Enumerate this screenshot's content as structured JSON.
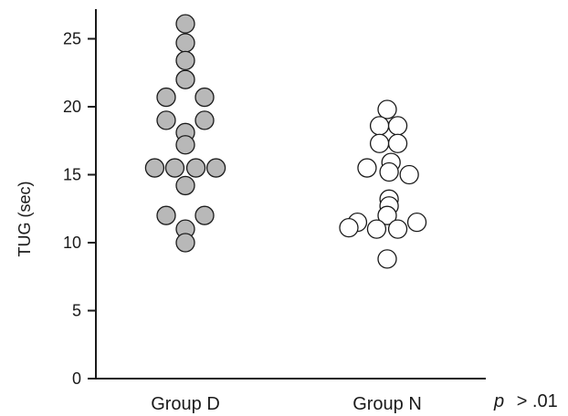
{
  "chart_data": {
    "type": "scatter",
    "ylabel": "TUG (sec)",
    "ylim": [
      0,
      27
    ],
    "yticks": [
      0,
      5,
      10,
      15,
      20,
      25
    ],
    "categories": [
      "Group D",
      "Group N"
    ],
    "annotation": {
      "p": "p",
      "rest": "> .01"
    },
    "series": [
      {
        "category": "Group D",
        "fill": "#b8b8b8",
        "points": [
          {
            "y": 26.1,
            "offset": 0
          },
          {
            "y": 24.7,
            "offset": 0
          },
          {
            "y": 23.4,
            "offset": 0
          },
          {
            "y": 22.0,
            "offset": 0
          },
          {
            "y": 20.7,
            "offset": -1
          },
          {
            "y": 20.7,
            "offset": 1
          },
          {
            "y": 19.0,
            "offset": -1
          },
          {
            "y": 19.0,
            "offset": 1
          },
          {
            "y": 18.1,
            "offset": 0
          },
          {
            "y": 17.2,
            "offset": 0
          },
          {
            "y": 15.5,
            "offset": -1.6
          },
          {
            "y": 15.5,
            "offset": -0.55
          },
          {
            "y": 15.5,
            "offset": 0.55
          },
          {
            "y": 15.5,
            "offset": 1.6
          },
          {
            "y": 14.2,
            "offset": 0
          },
          {
            "y": 12.0,
            "offset": -1
          },
          {
            "y": 12.0,
            "offset": 1
          },
          {
            "y": 11.0,
            "offset": 0
          },
          {
            "y": 10.0,
            "offset": 0
          }
        ]
      },
      {
        "category": "Group N",
        "fill": "#ffffff",
        "points": [
          {
            "y": 19.8,
            "offset": 0
          },
          {
            "y": 18.6,
            "offset": -0.4
          },
          {
            "y": 18.6,
            "offset": 0.55
          },
          {
            "y": 17.3,
            "offset": -0.4
          },
          {
            "y": 17.3,
            "offset": 0.55
          },
          {
            "y": 15.9,
            "offset": 0.2
          },
          {
            "y": 15.5,
            "offset": -1.05
          },
          {
            "y": 15.2,
            "offset": 0.1
          },
          {
            "y": 15.0,
            "offset": 1.15
          },
          {
            "y": 13.2,
            "offset": 0.1
          },
          {
            "y": 12.7,
            "offset": 0.1
          },
          {
            "y": 12.0,
            "offset": 0
          },
          {
            "y": 11.5,
            "offset": -1.55
          },
          {
            "y": 11.5,
            "offset": 1.55
          },
          {
            "y": 11.1,
            "offset": -2.0
          },
          {
            "y": 11.0,
            "offset": -0.55
          },
          {
            "y": 11.0,
            "offset": 0.55
          },
          {
            "y": 8.8,
            "offset": 0
          }
        ]
      }
    ]
  }
}
